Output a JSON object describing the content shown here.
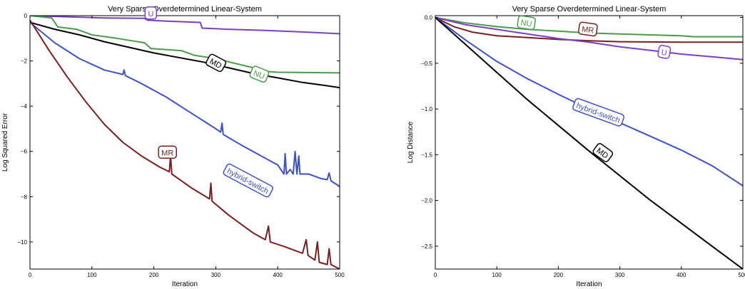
{
  "chart_data": [
    {
      "type": "line",
      "title": "Very Sparse Overdetermined Linear-System",
      "xlabel": "Iteration",
      "ylabel": "Log Squared Error",
      "xlim": [
        0,
        500
      ],
      "ylim": [
        -11.2,
        0
      ],
      "xticks": [
        0,
        100,
        200,
        300,
        400,
        500
      ],
      "yticks": [
        0,
        -2,
        -4,
        -6,
        -8,
        -10
      ],
      "xtick_labels": [
        "0",
        "100",
        "200",
        "300",
        "400",
        "500"
      ],
      "ytick_labels": [
        "0",
        "−2",
        "−4",
        "−6",
        "−8",
        "−10"
      ],
      "grid": false,
      "series": [
        {
          "name": "U",
          "color": "#7b3fc4",
          "label_at": [
            195,
            0.1
          ],
          "points": [
            [
              0,
              0
            ],
            [
              60,
              -0.05
            ],
            [
              120,
              -0.1
            ],
            [
              185,
              -0.12
            ],
            [
              190,
              -0.2
            ],
            [
              225,
              -0.25
            ],
            [
              275,
              -0.3
            ],
            [
              278,
              -0.55
            ],
            [
              320,
              -0.6
            ],
            [
              380,
              -0.65
            ],
            [
              440,
              -0.72
            ],
            [
              500,
              -0.8
            ]
          ]
        },
        {
          "name": "NU",
          "color": "#4c9a4c",
          "label_at": [
            370,
            -2.6
          ],
          "points": [
            [
              0,
              0
            ],
            [
              35,
              -0.1
            ],
            [
              45,
              -0.5
            ],
            [
              75,
              -0.6
            ],
            [
              100,
              -0.85
            ],
            [
              140,
              -1.0
            ],
            [
              185,
              -1.2
            ],
            [
              195,
              -1.45
            ],
            [
              245,
              -1.55
            ],
            [
              265,
              -1.75
            ],
            [
              300,
              -1.9
            ],
            [
              330,
              -2.1
            ],
            [
              360,
              -2.3
            ],
            [
              375,
              -2.45
            ],
            [
              400,
              -2.5
            ],
            [
              500,
              -2.53
            ]
          ]
        },
        {
          "name": "MD",
          "color": "#000000",
          "label_at": [
            300,
            -2.1
          ],
          "points": [
            [
              0,
              -0.3
            ],
            [
              40,
              -0.6
            ],
            [
              80,
              -0.85
            ],
            [
              120,
              -1.15
            ],
            [
              160,
              -1.4
            ],
            [
              200,
              -1.65
            ],
            [
              240,
              -1.85
            ],
            [
              280,
              -2.05
            ],
            [
              320,
              -2.3
            ],
            [
              360,
              -2.55
            ],
            [
              400,
              -2.75
            ],
            [
              440,
              -2.95
            ],
            [
              480,
              -3.1
            ],
            [
              500,
              -3.18
            ]
          ]
        },
        {
          "name": "hybrid-switch",
          "color": "#3f51c4",
          "label_at": [
            352,
            -7.3
          ],
          "points": [
            [
              0,
              -0.3
            ],
            [
              40,
              -1.2
            ],
            [
              80,
              -1.9
            ],
            [
              120,
              -2.4
            ],
            [
              150,
              -2.6
            ],
            [
              152,
              -2.4
            ],
            [
              154,
              -2.65
            ],
            [
              180,
              -3.0
            ],
            [
              220,
              -3.6
            ],
            [
              260,
              -4.3
            ],
            [
              300,
              -5.0
            ],
            [
              308,
              -5.15
            ],
            [
              310,
              -4.75
            ],
            [
              312,
              -5.25
            ],
            [
              340,
              -5.7
            ],
            [
              380,
              -6.3
            ],
            [
              400,
              -6.6
            ],
            [
              410,
              -7.0
            ],
            [
              412,
              -6.1
            ],
            [
              414,
              -7.0
            ],
            [
              420,
              -6.8
            ],
            [
              425,
              -7.0
            ],
            [
              428,
              -6.0
            ],
            [
              431,
              -7.0
            ],
            [
              434,
              -6.2
            ],
            [
              436,
              -7.0
            ],
            [
              450,
              -7.0
            ],
            [
              470,
              -7.2
            ],
            [
              480,
              -7.25
            ],
            [
              483,
              -6.95
            ],
            [
              486,
              -7.3
            ],
            [
              500,
              -7.55
            ]
          ]
        },
        {
          "name": "MR",
          "color": "#7a1f1f",
          "label_at": [
            222,
            -6.05
          ],
          "points": [
            [
              0,
              -0.2
            ],
            [
              30,
              -1.5
            ],
            [
              60,
              -2.7
            ],
            [
              90,
              -3.8
            ],
            [
              120,
              -4.8
            ],
            [
              150,
              -5.6
            ],
            [
              180,
              -6.2
            ],
            [
              210,
              -6.7
            ],
            [
              225,
              -6.9
            ],
            [
              227,
              -6.2
            ],
            [
              229,
              -7.0
            ],
            [
              260,
              -7.6
            ],
            [
              290,
              -8.1
            ],
            [
              292,
              -7.4
            ],
            [
              294,
              -8.2
            ],
            [
              320,
              -8.8
            ],
            [
              340,
              -9.2
            ],
            [
              360,
              -9.6
            ],
            [
              380,
              -9.9
            ],
            [
              385,
              -9.3
            ],
            [
              388,
              -10.0
            ],
            [
              410,
              -10.2
            ],
            [
              440,
              -10.5
            ],
            [
              446,
              -9.9
            ],
            [
              449,
              -10.6
            ],
            [
              460,
              -10.8
            ],
            [
              464,
              -10.0
            ],
            [
              467,
              -10.9
            ],
            [
              480,
              -11.0
            ],
            [
              483,
              -10.3
            ],
            [
              486,
              -11.0
            ],
            [
              500,
              -11.2
            ]
          ]
        }
      ]
    },
    {
      "type": "line",
      "title": "Very Sparse Overdetermined Linear-System",
      "xlabel": "Iteration",
      "ylabel": "Log Distance",
      "xlim": [
        0,
        500
      ],
      "ylim": [
        -2.75,
        0.02
      ],
      "xticks": [
        0,
        100,
        200,
        300,
        400,
        500
      ],
      "yticks": [
        0,
        -0.5,
        -1.0,
        -1.5,
        -2.0,
        -2.5
      ],
      "xtick_labels": [
        "0",
        "100",
        "200",
        "300",
        "400",
        "500"
      ],
      "ytick_labels": [
        "0.0",
        "−0.5",
        "−1.0",
        "−1.5",
        "−2.0",
        "−2.5"
      ],
      "grid": false,
      "series": [
        {
          "name": "NU",
          "color": "#4c9a4c",
          "label_at": [
            148,
            -0.06
          ],
          "points": [
            [
              0,
              0
            ],
            [
              50,
              -0.06
            ],
            [
              100,
              -0.1
            ],
            [
              150,
              -0.13
            ],
            [
              200,
              -0.15
            ],
            [
              250,
              -0.17
            ],
            [
              300,
              -0.18
            ],
            [
              350,
              -0.19
            ],
            [
              400,
              -0.2
            ],
            [
              420,
              -0.21
            ],
            [
              500,
              -0.21
            ]
          ]
        },
        {
          "name": "MR",
          "color": "#7a1f1f",
          "label_at": [
            248,
            -0.13
          ],
          "points": [
            [
              0,
              0
            ],
            [
              30,
              -0.1
            ],
            [
              60,
              -0.16
            ],
            [
              100,
              -0.2
            ],
            [
              150,
              -0.22
            ],
            [
              200,
              -0.24
            ],
            [
              250,
              -0.255
            ],
            [
              300,
              -0.265
            ],
            [
              400,
              -0.27
            ],
            [
              500,
              -0.27
            ]
          ]
        },
        {
          "name": "U",
          "color": "#7b3fc4",
          "label_at": [
            372,
            -0.38
          ],
          "points": [
            [
              0,
              0
            ],
            [
              50,
              -0.08
            ],
            [
              100,
              -0.13
            ],
            [
              150,
              -0.18
            ],
            [
              200,
              -0.23
            ],
            [
              250,
              -0.27
            ],
            [
              300,
              -0.32
            ],
            [
              350,
              -0.36
            ],
            [
              400,
              -0.4
            ],
            [
              450,
              -0.43
            ],
            [
              500,
              -0.46
            ]
          ]
        },
        {
          "name": "hybrid-switch",
          "color": "#3f51c4",
          "label_at": [
            265,
            -1.04
          ],
          "points": [
            [
              0,
              0
            ],
            [
              50,
              -0.25
            ],
            [
              100,
              -0.48
            ],
            [
              150,
              -0.67
            ],
            [
              200,
              -0.84
            ],
            [
              250,
              -1.0
            ],
            [
              300,
              -1.15
            ],
            [
              350,
              -1.3
            ],
            [
              400,
              -1.45
            ],
            [
              450,
              -1.62
            ],
            [
              500,
              -1.84
            ]
          ]
        },
        {
          "name": "MD",
          "color": "#000000",
          "label_at": [
            272,
            -1.48
          ],
          "points": [
            [
              0,
              0
            ],
            [
              50,
              -0.3
            ],
            [
              100,
              -0.6
            ],
            [
              150,
              -0.9
            ],
            [
              200,
              -1.18
            ],
            [
              250,
              -1.46
            ],
            [
              300,
              -1.73
            ],
            [
              350,
              -2.0
            ],
            [
              400,
              -2.25
            ],
            [
              450,
              -2.5
            ],
            [
              500,
              -2.75
            ]
          ]
        }
      ]
    }
  ]
}
